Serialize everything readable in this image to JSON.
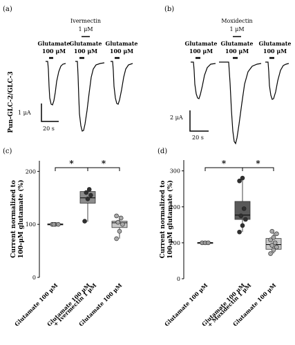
{
  "panels": {
    "a": {
      "label": "(a)",
      "top_drug": "Ivermectin",
      "top_conc": "1 μM",
      "glu_label": "Glutamate",
      "glu_conc": "100 μM",
      "side_label": "Pun-GLC-2/GLC-3",
      "scale_y": "1 μA",
      "scale_x": "20 s"
    },
    "b": {
      "label": "(b)",
      "top_drug": "Moxidectin",
      "top_conc": "1 μM",
      "glu_label": "Glutamate",
      "glu_conc": "100 μM",
      "scale_y": "2 μA",
      "scale_x": "20 s"
    },
    "c": {
      "label": "(c)"
    },
    "d": {
      "label": "(d)"
    }
  },
  "chart_data": [
    {
      "type": "box",
      "panel": "c",
      "ylabel_line1": "Current normalized to",
      "ylabel_line2": "100-μM glutamate (%)",
      "ylim": [
        0,
        220
      ],
      "yticks": [
        0,
        100,
        200
      ],
      "categories": [
        [
          "Glutamate 100 μM"
        ],
        [
          "Glutamate 100 μM",
          "+ Ivermectin 1 μM"
        ],
        [
          "Glutamate 100 μM"
        ]
      ],
      "boxes": [
        {
          "q1": 99,
          "median": 100,
          "q3": 101,
          "whisker_low": 99,
          "whisker_high": 101,
          "color": "#d9d9d9"
        },
        {
          "q1": 140,
          "median": 150,
          "q3": 162,
          "whisker_low": 105,
          "whisker_high": 168,
          "color": "#8c8c8c"
        },
        {
          "q1": 94,
          "median": 103,
          "q3": 106,
          "whisker_low": 73,
          "whisker_high": 116,
          "color": "#c8c8c8"
        }
      ],
      "points": [
        [
          100,
          100,
          100,
          100
        ],
        [
          106,
          148,
          155,
          160,
          166
        ],
        [
          73,
          87,
          100,
          104,
          112,
          116
        ]
      ],
      "significance": [
        {
          "from": 0,
          "to": 1,
          "text": "*"
        },
        {
          "from": 1,
          "to": 2,
          "text": "*"
        }
      ]
    },
    {
      "type": "box",
      "panel": "d",
      "ylabel_line1": "Current normalized to",
      "ylabel_line2": "100-μM glutamate (%)",
      "ylim": [
        0,
        330
      ],
      "yticks": [
        0,
        100,
        200,
        300
      ],
      "categories": [
        [
          "Glutamate 100 μM"
        ],
        [
          "Glutamate 100 μM",
          "+ Moxidectin 1 μM"
        ],
        [
          "Glutamate 100 μM"
        ]
      ],
      "boxes": [
        {
          "q1": 99,
          "median": 100,
          "q3": 101,
          "whisker_low": 99,
          "whisker_high": 101,
          "color": "#d9d9d9"
        },
        {
          "q1": 165,
          "median": 177,
          "q3": 215,
          "whisker_low": 130,
          "whisker_high": 280,
          "color": "#595959"
        },
        {
          "q1": 82,
          "median": 95,
          "q3": 112,
          "whisker_low": 70,
          "whisker_high": 132,
          "color": "#c8c8c8"
        }
      ],
      "points": [
        [
          100,
          100,
          100
        ],
        [
          130,
          148,
          165,
          175,
          195,
          272,
          280
        ],
        [
          70,
          80,
          88,
          93,
          100,
          108,
          115,
          125,
          132
        ]
      ],
      "significance": [
        {
          "from": 0,
          "to": 1,
          "text": "*"
        },
        {
          "from": 1,
          "to": 2,
          "text": "*"
        }
      ]
    }
  ]
}
